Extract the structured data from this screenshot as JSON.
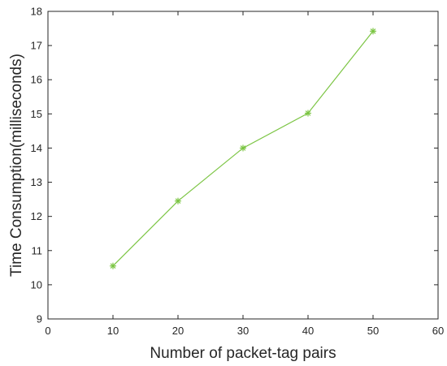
{
  "chart_data": {
    "type": "line",
    "title": "",
    "xlabel": "Number of packet-tag pairs",
    "ylabel": "Time Consumption(milliseconds)",
    "xlim": [
      0,
      60
    ],
    "ylim": [
      9,
      18
    ],
    "xticks": [
      "0",
      "10",
      "20",
      "30",
      "40",
      "50",
      "60"
    ],
    "yticks": [
      "9",
      "10",
      "11",
      "12",
      "13",
      "14",
      "15",
      "16",
      "17",
      "18"
    ],
    "grid": false,
    "legend": "none",
    "marker": "asterisk",
    "series": [
      {
        "color": "#7cc544",
        "x": [
          10,
          20,
          30,
          40,
          50
        ],
        "y": [
          10.55,
          12.45,
          14.0,
          15.02,
          17.42
        ]
      }
    ]
  }
}
